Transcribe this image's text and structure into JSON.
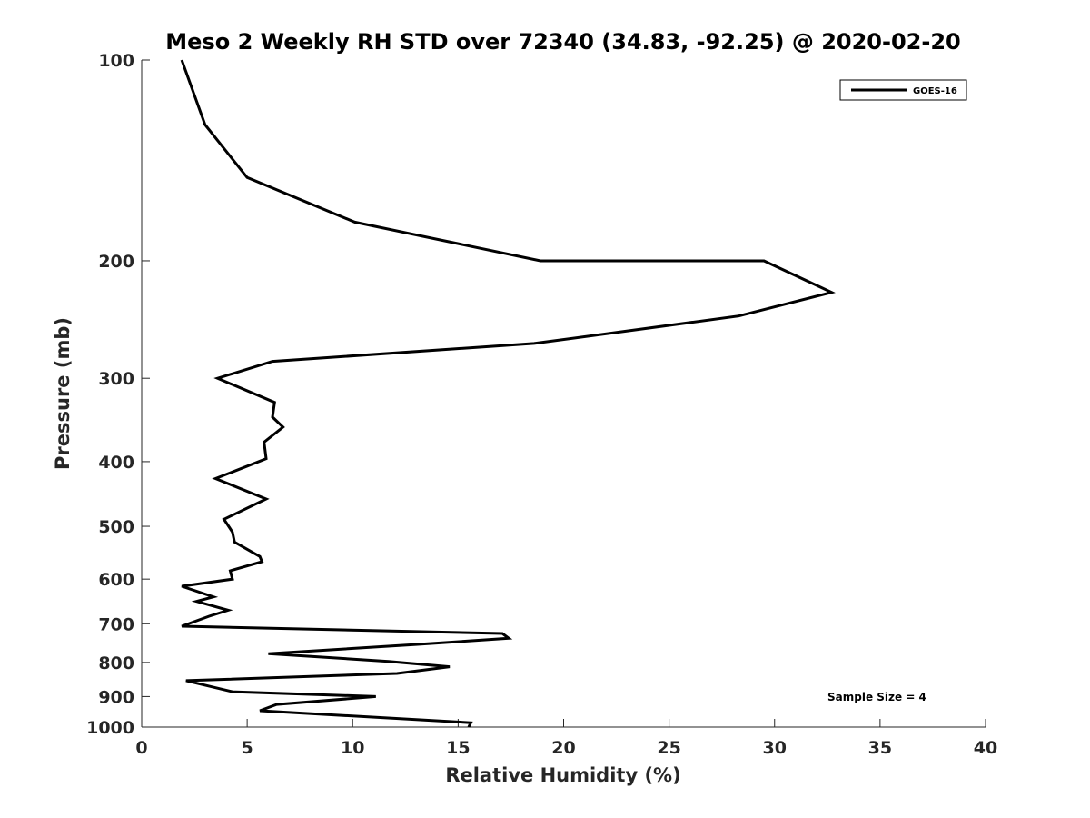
{
  "chart_data": {
    "type": "line",
    "title": "Meso 2 Weekly RH STD over 72340 (34.83, -92.25) @ 2020-02-20",
    "xlabel": "Relative Humidity (%)",
    "ylabel": "Pressure (mb)",
    "xlim": [
      0,
      40
    ],
    "ylim": [
      100,
      1000
    ],
    "yscale": "log",
    "yreversed": true,
    "xticks": [
      "0",
      "5",
      "10",
      "15",
      "20",
      "25",
      "30",
      "35",
      "40"
    ],
    "yticks": [
      "100",
      "200",
      "300",
      "400",
      "500",
      "600",
      "700",
      "800",
      "900",
      "1000"
    ],
    "grid": false,
    "legend": "top-right",
    "annotation": "Sample Size = 4",
    "series": [
      {
        "name": "GOES-16",
        "color": "#000000",
        "points": [
          [
            1.9,
            100
          ],
          [
            3.0,
            125
          ],
          [
            5.0,
            150
          ],
          [
            10.1,
            175
          ],
          [
            18.9,
            200
          ],
          [
            29.5,
            200
          ],
          [
            32.7,
            223
          ],
          [
            28.3,
            242
          ],
          [
            18.6,
            266
          ],
          [
            6.2,
            283
          ],
          [
            3.6,
            300
          ],
          [
            6.3,
            326
          ],
          [
            6.2,
            343
          ],
          [
            6.7,
            355
          ],
          [
            5.8,
            374
          ],
          [
            5.9,
            396
          ],
          [
            3.5,
            424
          ],
          [
            5.9,
            455
          ],
          [
            3.9,
            488
          ],
          [
            4.3,
            510
          ],
          [
            4.4,
            528
          ],
          [
            5.6,
            555
          ],
          [
            5.7,
            565
          ],
          [
            4.2,
            583
          ],
          [
            4.3,
            600
          ],
          [
            1.9,
            615
          ],
          [
            3.4,
            638
          ],
          [
            2.6,
            648
          ],
          [
            4.1,
            668
          ],
          [
            3.2,
            682
          ],
          [
            1.9,
            706
          ],
          [
            17.1,
            724
          ],
          [
            17.4,
            736
          ],
          [
            13.0,
            752
          ],
          [
            6.0,
            776
          ],
          [
            11.7,
            797
          ],
          [
            14.6,
            812
          ],
          [
            12.1,
            831
          ],
          [
            2.1,
            852
          ],
          [
            4.3,
            885
          ],
          [
            11.1,
            900
          ],
          [
            6.4,
            925
          ],
          [
            5.6,
            945
          ],
          [
            15.6,
            985
          ],
          [
            15.5,
            1000
          ]
        ]
      }
    ]
  }
}
